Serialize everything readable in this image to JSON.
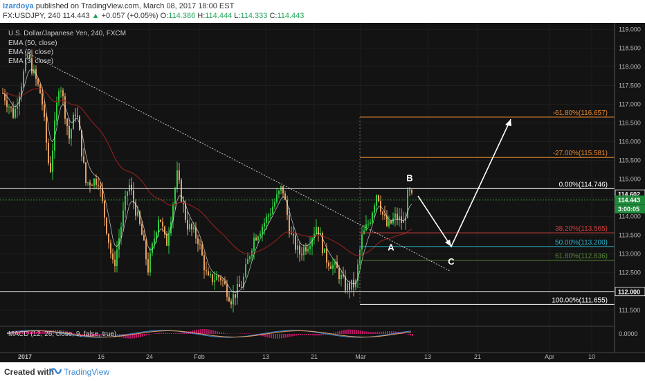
{
  "header": {
    "author": "Izardoya",
    "published": "published on TradingView.com, March 08, 2017 18:00 EST",
    "symbol": "FX:USDJPY, 240",
    "last": "114.443",
    "change_arrow": "▲",
    "change": "+0.057 (+0.05%)",
    "o_label": "O:",
    "o_value": "114.386",
    "h_label": "H:",
    "h_value": "114.444",
    "l_label": "L:",
    "l_value": "114.333",
    "c_label": "C:",
    "c_value": "114.443"
  },
  "legend": {
    "title": "U.S. Dollar/Japanese Yen, 240, FXCM",
    "ema1": "EMA (50, close)",
    "ema2": "EMA (9, close)",
    "ema3": "EMA (3, close)"
  },
  "macd_label": "MACD (12, 26, close, 9, false, true)",
  "footer": {
    "created": "Created with",
    "brand": "TradingView"
  },
  "colors": {
    "background": "#131313",
    "up": "#2ecc40",
    "down": "#e8a060",
    "fib_ext": "#e8892b",
    "fib_382": "#d94040",
    "fib_500": "#28b4c8",
    "fib_618": "#5a8a3a",
    "ema50": "#8b1e1e",
    "price_tag": "#2a6e2a"
  },
  "chart_data": {
    "type": "candlestick",
    "title": "U.S. Dollar/Japanese Yen, 240, FXCM",
    "y_ticks": [
      "119.000",
      "118.500",
      "118.000",
      "117.500",
      "117.000",
      "116.500",
      "116.000",
      "115.500",
      "115.000",
      "114.500",
      "114.000",
      "113.500",
      "113.000",
      "112.500",
      "112.000",
      "111.500"
    ],
    "ylim": [
      111.2,
      119.1
    ],
    "x_ticks": [
      "2017",
      "16",
      "24",
      "Feb",
      "13",
      "21",
      "Mar",
      "13",
      "21",
      "Apr",
      "10"
    ],
    "fib_levels": [
      {
        "label": "-61.80%(116.657)",
        "value": 116.657
      },
      {
        "label": "-27.00%(115.581)",
        "value": 115.581
      },
      {
        "label": "0.00%(114.746)",
        "value": 114.746
      },
      {
        "label": "38.20%(113.565)",
        "value": 113.565
      },
      {
        "label": "50.00%(113.200)",
        "value": 113.2
      },
      {
        "label": "61.80%(112.836)",
        "value": 112.836
      },
      {
        "label": "100.00%(111.655)",
        "value": 111.655
      }
    ],
    "horizontal_lines": [
      114.746,
      112.0
    ],
    "price_tags": [
      {
        "label": "114.602",
        "value": 114.602
      },
      {
        "label": "114.443",
        "value": 114.443
      },
      {
        "label": "3:00:05",
        "value": 114.33
      },
      {
        "label": "112.000",
        "value": 112.0
      }
    ],
    "wave_labels": [
      "A",
      "B",
      "C"
    ],
    "projection": [
      {
        "point": "B",
        "value": 114.55
      },
      {
        "point": "C",
        "value": 113.2
      },
      {
        "point": "target",
        "value": 116.6
      }
    ],
    "trendline": {
      "from": 118.4,
      "to": 112.55
    },
    "macd_tick": "0.0000"
  }
}
